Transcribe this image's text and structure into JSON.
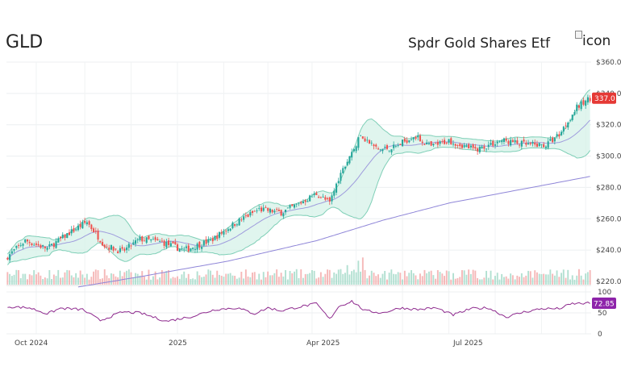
{
  "header": {
    "ticker": "GLD",
    "company": "Spdr Gold Shares Etf",
    "logo_alt": "icon"
  },
  "chart_data": {
    "type": "candlestick",
    "price_axis": {
      "range": [
        220,
        360
      ],
      "ticks": [
        "$360.0",
        "$340.0",
        "$320.0",
        "$300.0",
        "$280.0",
        "$260.0",
        "$240.0",
        "$220.0"
      ]
    },
    "rsi_axis": {
      "range": [
        0,
        100
      ],
      "ticks": [
        "100",
        "50",
        "0"
      ]
    },
    "x_ticks": [
      "Oct 2024",
      "2025",
      "Apr 2025",
      "Jul 2025"
    ],
    "last_price_label": "337.0",
    "last_rsi_label": "72.85",
    "grid": true,
    "colors": {
      "up": "#26a69a",
      "down": "#ef5350",
      "band_fill": "#d6f1e8",
      "band_line": "#7fcfb7",
      "ma": "#8f86d8",
      "rsi": "#8e2a8e",
      "price_badge": "#e53935",
      "rsi_badge": "#8e24aa"
    },
    "price_anchors": [
      [
        0,
        236
      ],
      [
        8,
        246
      ],
      [
        18,
        241
      ],
      [
        28,
        251
      ],
      [
        36,
        258
      ],
      [
        44,
        243
      ],
      [
        52,
        239
      ],
      [
        60,
        247
      ],
      [
        70,
        245
      ],
      [
        80,
        240
      ],
      [
        92,
        246
      ],
      [
        104,
        258
      ],
      [
        114,
        266
      ],
      [
        124,
        264
      ],
      [
        130,
        268
      ],
      [
        140,
        276
      ],
      [
        146,
        270
      ],
      [
        150,
        286
      ],
      [
        156,
        302
      ],
      [
        160,
        313
      ],
      [
        168,
        304
      ],
      [
        176,
        306
      ],
      [
        184,
        313
      ],
      [
        192,
        306
      ],
      [
        200,
        310
      ],
      [
        212,
        304
      ],
      [
        224,
        310
      ],
      [
        236,
        307
      ],
      [
        244,
        307
      ],
      [
        250,
        314
      ],
      [
        258,
        331
      ],
      [
        264,
        337
      ]
    ],
    "ma_anchors": [
      [
        0,
        226
      ],
      [
        30,
        216
      ],
      [
        60,
        223
      ],
      [
        100,
        233
      ],
      [
        140,
        246
      ],
      [
        170,
        259
      ],
      [
        200,
        270
      ],
      [
        230,
        278
      ],
      [
        264,
        287
      ]
    ],
    "rsi_anchors": [
      [
        0,
        65
      ],
      [
        10,
        62
      ],
      [
        18,
        48
      ],
      [
        24,
        61
      ],
      [
        34,
        58
      ],
      [
        42,
        32
      ],
      [
        52,
        52
      ],
      [
        60,
        50
      ],
      [
        72,
        30
      ],
      [
        84,
        42
      ],
      [
        94,
        58
      ],
      [
        104,
        62
      ],
      [
        112,
        48
      ],
      [
        118,
        62
      ],
      [
        124,
        55
      ],
      [
        130,
        62
      ],
      [
        140,
        72
      ],
      [
        146,
        35
      ],
      [
        150,
        65
      ],
      [
        156,
        78
      ],
      [
        162,
        55
      ],
      [
        170,
        50
      ],
      [
        178,
        62
      ],
      [
        186,
        58
      ],
      [
        194,
        62
      ],
      [
        202,
        45
      ],
      [
        210,
        60
      ],
      [
        218,
        62
      ],
      [
        226,
        40
      ],
      [
        234,
        52
      ],
      [
        242,
        60
      ],
      [
        250,
        60
      ],
      [
        256,
        72
      ],
      [
        264,
        73
      ]
    ]
  }
}
